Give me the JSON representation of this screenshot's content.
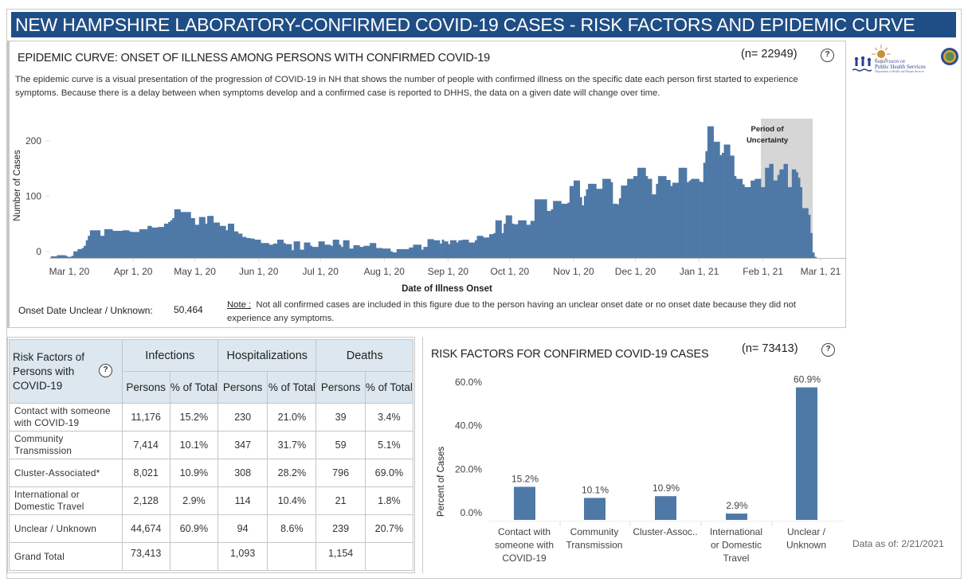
{
  "banner": {
    "title": "NEW HAMPSHIRE LABORATORY-CONFIRMED COVID-19 CASES - RISK FACTORS AND EPIDEMIC CURVE"
  },
  "epi": {
    "title": "EPIDEMIC CURVE: ONSET OF ILLNESS AMONG PERSONS WITH CONFIRMED COVID-19",
    "n_label": "(n= 22949)",
    "help_label": "?",
    "description": "The epidemic curve is a visual presentation of the progression of COVID-19 in NH that shows the number of people with confirmed illness on the specific date each person first started to experience symptoms. Because there is a delay between when symptoms develop and a confirmed case is reported to DHHS, the data on a given date will change over time.",
    "onset_unknown_label": "Onset Date Unclear / Unknown:",
    "onset_unknown_value": "50,464",
    "note_label": "Note :",
    "note_text": "Not all confirmed cases are included in this figure due to the person having an unclear onset date or no onset date because they did not experience any symptoms."
  },
  "logo": {
    "line1": "NH DIVISION OF",
    "line2": "Public Health Services",
    "line3": "Department of Health and Human Services"
  },
  "table": {
    "corner_label": "Risk Factors of Persons with COVID-19",
    "help_label": "?",
    "groups": [
      "Infections",
      "Hospitalizations",
      "Deaths"
    ],
    "sub_headers": [
      "Persons",
      "% of Total",
      "Persons",
      "% of Total",
      "Persons",
      "% of Total"
    ],
    "rows": [
      {
        "label": "Contact with someone with COVID-19",
        "values": [
          "11,176",
          "15.2%",
          "230",
          "21.0%",
          "39",
          "3.4%"
        ]
      },
      {
        "label": "Community Transmission",
        "values": [
          "7,414",
          "10.1%",
          "347",
          "31.7%",
          "59",
          "5.1%"
        ]
      },
      {
        "label": "Cluster-Associated*",
        "values": [
          "8,021",
          "10.9%",
          "308",
          "28.2%",
          "796",
          "69.0%"
        ]
      },
      {
        "label": "International or Domestic Travel",
        "values": [
          "2,128",
          "2.9%",
          "114",
          "10.4%",
          "21",
          "1.8%"
        ]
      },
      {
        "label": "Unclear / Unknown",
        "values": [
          "44,674",
          "60.9%",
          "94",
          "8.6%",
          "239",
          "20.7%"
        ]
      }
    ],
    "total": {
      "label": "Grand Total",
      "values": [
        "73,413",
        "",
        "1,093",
        "",
        "1,154",
        ""
      ]
    }
  },
  "risk_chart": {
    "title": "RISK FACTORS FOR CONFIRMED COVID-19 CASES",
    "n_label": "(n= 73413)",
    "help_label": "?"
  },
  "data_as_of": "Data as of:  2/21/2021",
  "colors": {
    "banner": "#1f4e86",
    "bar": "#4e79a7",
    "uncertainty": "#d6d6d6",
    "table_header": "#dce7ef"
  },
  "chart_data": [
    {
      "type": "bar",
      "title": "Epidemic curve: onset of illness",
      "xlabel": "Date of Illness Onset",
      "ylabel": "Number of Cases",
      "ylim": [
        0,
        250
      ],
      "yticks": [
        0,
        100,
        200
      ],
      "xticks": [
        "Mar 1, 20",
        "Apr 1, 20",
        "May 1, 20",
        "Jun 1, 20",
        "Jul 1, 20",
        "Aug 1, 20",
        "Sep 1, 20",
        "Oct 1, 20",
        "Nov 1, 20",
        "Dec 1, 20",
        "Jan 1, 21",
        "Feb 1, 21",
        "Mar 1, 21"
      ],
      "xtick_days": [
        0,
        31,
        61,
        92,
        122,
        153,
        184,
        214,
        245,
        275,
        306,
        337,
        365
      ],
      "annotation": "Period of Uncertainty",
      "uncertainty_days": [
        336,
        360
      ],
      "x_origin": "2020-03-01",
      "segments_note": "d = day offset from Mar 1 2020, n = number of days, v = cases per day",
      "segments": [
        {
          "d": -9,
          "n": 3,
          "v": 3
        },
        {
          "d": -6,
          "n": 4,
          "v": 5
        },
        {
          "d": -2,
          "n": 1,
          "v": 4
        },
        {
          "d": -1,
          "n": 2,
          "v": 2
        },
        {
          "d": 1,
          "n": 1,
          "v": 4
        },
        {
          "d": 2,
          "n": 2,
          "v": 12
        },
        {
          "d": 4,
          "n": 2,
          "v": 16
        },
        {
          "d": 6,
          "n": 1,
          "v": 18
        },
        {
          "d": 7,
          "n": 1,
          "v": 22
        },
        {
          "d": 8,
          "n": 1,
          "v": 32
        },
        {
          "d": 9,
          "n": 1,
          "v": 40
        },
        {
          "d": 10,
          "n": 5,
          "v": 50
        },
        {
          "d": 15,
          "n": 2,
          "v": 40
        },
        {
          "d": 17,
          "n": 4,
          "v": 52
        },
        {
          "d": 21,
          "n": 5,
          "v": 49
        },
        {
          "d": 26,
          "n": 3,
          "v": 50
        },
        {
          "d": 29,
          "n": 1,
          "v": 48
        },
        {
          "d": 30,
          "n": 4,
          "v": 47
        },
        {
          "d": 34,
          "n": 4,
          "v": 52
        },
        {
          "d": 38,
          "n": 2,
          "v": 58
        },
        {
          "d": 40,
          "n": 3,
          "v": 55
        },
        {
          "d": 43,
          "n": 3,
          "v": 56
        },
        {
          "d": 46,
          "n": 2,
          "v": 62
        },
        {
          "d": 48,
          "n": 1,
          "v": 65
        },
        {
          "d": 49,
          "n": 1,
          "v": 68
        },
        {
          "d": 50,
          "n": 1,
          "v": 72
        },
        {
          "d": 51,
          "n": 3,
          "v": 88
        },
        {
          "d": 54,
          "n": 5,
          "v": 83
        },
        {
          "d": 59,
          "n": 2,
          "v": 72
        },
        {
          "d": 61,
          "n": 2,
          "v": 60
        },
        {
          "d": 63,
          "n": 3,
          "v": 74
        },
        {
          "d": 66,
          "n": 1,
          "v": 62
        },
        {
          "d": 67,
          "n": 3,
          "v": 76
        },
        {
          "d": 70,
          "n": 3,
          "v": 64
        },
        {
          "d": 73,
          "n": 3,
          "v": 58
        },
        {
          "d": 76,
          "n": 1,
          "v": 50
        },
        {
          "d": 77,
          "n": 3,
          "v": 62
        },
        {
          "d": 80,
          "n": 2,
          "v": 48
        },
        {
          "d": 82,
          "n": 2,
          "v": 44
        },
        {
          "d": 84,
          "n": 2,
          "v": 38
        },
        {
          "d": 86,
          "n": 2,
          "v": 36
        },
        {
          "d": 88,
          "n": 2,
          "v": 35
        },
        {
          "d": 90,
          "n": 3,
          "v": 33
        },
        {
          "d": 93,
          "n": 4,
          "v": 27
        },
        {
          "d": 97,
          "n": 2,
          "v": 24
        },
        {
          "d": 99,
          "n": 2,
          "v": 26
        },
        {
          "d": 101,
          "n": 3,
          "v": 33
        },
        {
          "d": 104,
          "n": 1,
          "v": 27
        },
        {
          "d": 105,
          "n": 3,
          "v": 25
        },
        {
          "d": 108,
          "n": 1,
          "v": 14
        },
        {
          "d": 109,
          "n": 3,
          "v": 30
        },
        {
          "d": 112,
          "n": 2,
          "v": 15
        },
        {
          "d": 114,
          "n": 3,
          "v": 28
        },
        {
          "d": 117,
          "n": 1,
          "v": 22
        },
        {
          "d": 118,
          "n": 3,
          "v": 20
        },
        {
          "d": 121,
          "n": 3,
          "v": 30
        },
        {
          "d": 124,
          "n": 3,
          "v": 24
        },
        {
          "d": 127,
          "n": 1,
          "v": 22
        },
        {
          "d": 128,
          "n": 3,
          "v": 33
        },
        {
          "d": 131,
          "n": 1,
          "v": 24
        },
        {
          "d": 132,
          "n": 1,
          "v": 20
        },
        {
          "d": 133,
          "n": 3,
          "v": 32
        },
        {
          "d": 136,
          "n": 2,
          "v": 17
        },
        {
          "d": 138,
          "n": 3,
          "v": 23
        },
        {
          "d": 141,
          "n": 2,
          "v": 20
        },
        {
          "d": 143,
          "n": 3,
          "v": 22
        },
        {
          "d": 146,
          "n": 3,
          "v": 27
        },
        {
          "d": 149,
          "n": 3,
          "v": 18
        },
        {
          "d": 152,
          "n": 4,
          "v": 17
        },
        {
          "d": 156,
          "n": 1,
          "v": 12
        },
        {
          "d": 157,
          "n": 2,
          "v": 10
        },
        {
          "d": 159,
          "n": 6,
          "v": 16
        },
        {
          "d": 165,
          "n": 2,
          "v": 19
        },
        {
          "d": 167,
          "n": 4,
          "v": 24
        },
        {
          "d": 171,
          "n": 1,
          "v": 15
        },
        {
          "d": 172,
          "n": 2,
          "v": 20
        },
        {
          "d": 174,
          "n": 3,
          "v": 34
        },
        {
          "d": 177,
          "n": 3,
          "v": 32
        },
        {
          "d": 180,
          "n": 1,
          "v": 26
        },
        {
          "d": 181,
          "n": 1,
          "v": 33
        },
        {
          "d": 182,
          "n": 2,
          "v": 30
        },
        {
          "d": 184,
          "n": 1,
          "v": 25
        },
        {
          "d": 185,
          "n": 3,
          "v": 32
        },
        {
          "d": 188,
          "n": 1,
          "v": 28
        },
        {
          "d": 189,
          "n": 2,
          "v": 32
        },
        {
          "d": 191,
          "n": 3,
          "v": 33
        },
        {
          "d": 194,
          "n": 3,
          "v": 28
        },
        {
          "d": 197,
          "n": 1,
          "v": 32
        },
        {
          "d": 198,
          "n": 3,
          "v": 40
        },
        {
          "d": 201,
          "n": 3,
          "v": 37
        },
        {
          "d": 204,
          "n": 2,
          "v": 43
        },
        {
          "d": 206,
          "n": 1,
          "v": 45
        },
        {
          "d": 207,
          "n": 3,
          "v": 68
        },
        {
          "d": 210,
          "n": 1,
          "v": 45
        },
        {
          "d": 211,
          "n": 1,
          "v": 62
        },
        {
          "d": 212,
          "n": 3,
          "v": 77
        },
        {
          "d": 215,
          "n": 1,
          "v": 62
        },
        {
          "d": 216,
          "n": 2,
          "v": 61
        },
        {
          "d": 218,
          "n": 4,
          "v": 68
        },
        {
          "d": 222,
          "n": 2,
          "v": 60
        },
        {
          "d": 224,
          "n": 2,
          "v": 67
        },
        {
          "d": 226,
          "n": 6,
          "v": 106
        },
        {
          "d": 232,
          "n": 2,
          "v": 85
        },
        {
          "d": 234,
          "n": 1,
          "v": 88
        },
        {
          "d": 235,
          "n": 4,
          "v": 103
        },
        {
          "d": 239,
          "n": 3,
          "v": 98
        },
        {
          "d": 242,
          "n": 1,
          "v": 100
        },
        {
          "d": 243,
          "n": 2,
          "v": 130
        },
        {
          "d": 245,
          "n": 3,
          "v": 140
        },
        {
          "d": 248,
          "n": 1,
          "v": 110
        },
        {
          "d": 249,
          "n": 1,
          "v": 95
        },
        {
          "d": 250,
          "n": 1,
          "v": 112
        },
        {
          "d": 251,
          "n": 1,
          "v": 124
        },
        {
          "d": 252,
          "n": 4,
          "v": 134
        },
        {
          "d": 256,
          "n": 3,
          "v": 125
        },
        {
          "d": 259,
          "n": 4,
          "v": 143
        },
        {
          "d": 263,
          "n": 1,
          "v": 137
        },
        {
          "d": 264,
          "n": 2,
          "v": 98
        },
        {
          "d": 266,
          "n": 1,
          "v": 97
        },
        {
          "d": 267,
          "n": 1,
          "v": 108
        },
        {
          "d": 268,
          "n": 3,
          "v": 131
        },
        {
          "d": 271,
          "n": 3,
          "v": 143
        },
        {
          "d": 274,
          "n": 2,
          "v": 148
        },
        {
          "d": 276,
          "n": 4,
          "v": 163
        },
        {
          "d": 280,
          "n": 1,
          "v": 148
        },
        {
          "d": 281,
          "n": 2,
          "v": 143
        },
        {
          "d": 283,
          "n": 2,
          "v": 115
        },
        {
          "d": 285,
          "n": 1,
          "v": 134
        },
        {
          "d": 286,
          "n": 4,
          "v": 148
        },
        {
          "d": 290,
          "n": 2,
          "v": 141
        },
        {
          "d": 292,
          "n": 1,
          "v": 130
        },
        {
          "d": 293,
          "n": 3,
          "v": 136
        },
        {
          "d": 296,
          "n": 4,
          "v": 163
        },
        {
          "d": 300,
          "n": 1,
          "v": 137
        },
        {
          "d": 301,
          "n": 1,
          "v": 140
        },
        {
          "d": 302,
          "n": 4,
          "v": 143
        },
        {
          "d": 306,
          "n": 1,
          "v": 138
        },
        {
          "d": 307,
          "n": 1,
          "v": 137
        },
        {
          "d": 308,
          "n": 1,
          "v": 172
        },
        {
          "d": 309,
          "n": 1,
          "v": 193
        },
        {
          "d": 310,
          "n": 3,
          "v": 238
        },
        {
          "d": 313,
          "n": 3,
          "v": 210
        },
        {
          "d": 316,
          "n": 1,
          "v": 186
        },
        {
          "d": 317,
          "n": 1,
          "v": 190
        },
        {
          "d": 318,
          "n": 3,
          "v": 205
        },
        {
          "d": 321,
          "n": 2,
          "v": 185
        },
        {
          "d": 323,
          "n": 1,
          "v": 148
        },
        {
          "d": 324,
          "n": 3,
          "v": 143
        },
        {
          "d": 327,
          "n": 1,
          "v": 133
        },
        {
          "d": 328,
          "n": 3,
          "v": 128
        },
        {
          "d": 331,
          "n": 2,
          "v": 140
        },
        {
          "d": 333,
          "n": 3,
          "v": 143
        },
        {
          "d": 336,
          "n": 2,
          "v": 128
        },
        {
          "d": 338,
          "n": 2,
          "v": 163
        },
        {
          "d": 340,
          "n": 2,
          "v": 170
        },
        {
          "d": 342,
          "n": 2,
          "v": 140
        },
        {
          "d": 344,
          "n": 1,
          "v": 150
        },
        {
          "d": 345,
          "n": 2,
          "v": 160
        },
        {
          "d": 347,
          "n": 2,
          "v": 170
        },
        {
          "d": 349,
          "n": 2,
          "v": 128
        },
        {
          "d": 351,
          "n": 2,
          "v": 160
        },
        {
          "d": 353,
          "n": 1,
          "v": 155
        },
        {
          "d": 354,
          "n": 1,
          "v": 145
        },
        {
          "d": 355,
          "n": 1,
          "v": 128
        },
        {
          "d": 356,
          "n": 3,
          "v": 90
        },
        {
          "d": 359,
          "n": 1,
          "v": 78
        },
        {
          "d": 360,
          "n": 1,
          "v": 45
        },
        {
          "d": 361,
          "n": 1,
          "v": 10
        },
        {
          "d": 362,
          "n": 1,
          "v": 2
        }
      ]
    },
    {
      "type": "bar",
      "title": "Risk factors for confirmed COVID-19 cases",
      "xlabel": "",
      "ylabel": "Percent of Cases",
      "ylim": [
        0,
        65
      ],
      "yticks": [
        "0.0%",
        "20.0%",
        "40.0%",
        "60.0%"
      ],
      "ytick_values": [
        0,
        20,
        40,
        60
      ],
      "categories": [
        "Contact with someone with COVID-19",
        "Community Transmission",
        "Cluster-Assoc..",
        "International or Domestic Travel",
        "Unclear / Unknown"
      ],
      "category_lines": [
        [
          "Contact with",
          "someone with",
          "COVID-19"
        ],
        [
          "Community",
          "Transmission"
        ],
        [
          "Cluster-Assoc.."
        ],
        [
          "International",
          "or Domestic",
          "Travel"
        ],
        [
          "Unclear /",
          "Unknown"
        ]
      ],
      "values": [
        15.2,
        10.1,
        10.9,
        2.9,
        60.9
      ],
      "labels": [
        "15.2%",
        "10.1%",
        "10.9%",
        "2.9%",
        "60.9%"
      ]
    }
  ]
}
